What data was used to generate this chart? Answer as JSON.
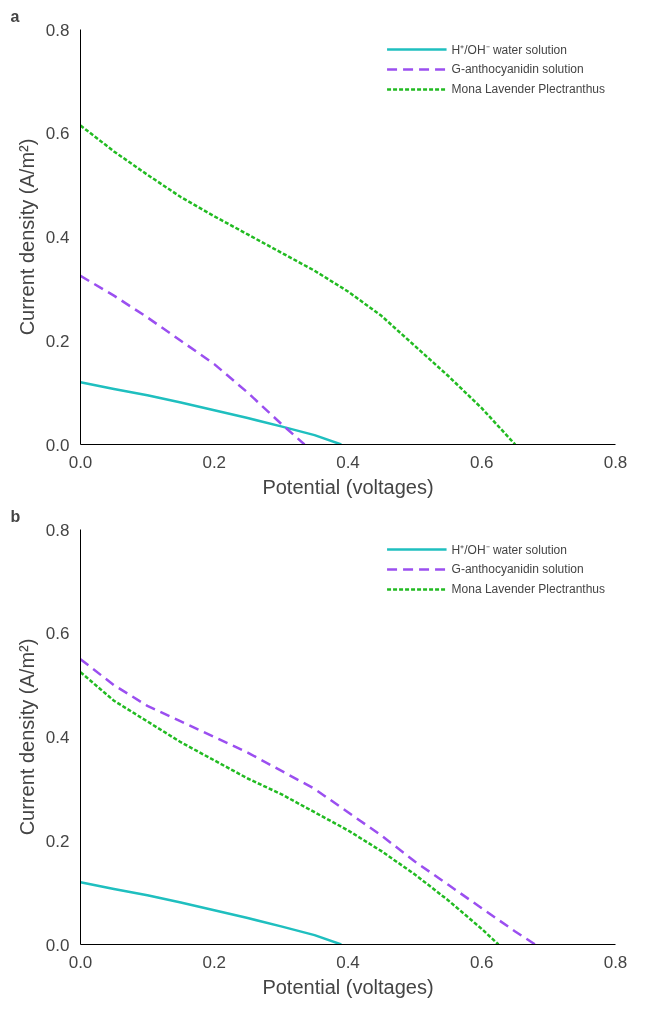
{
  "chart_data": [
    {
      "type": "line",
      "title": "a",
      "xlabel": "Potential (voltages)",
      "ylabel": "Current density (A/m²)",
      "xlim": [
        0,
        0.8
      ],
      "ylim": [
        0,
        0.8
      ],
      "xticks": [
        {
          "value": 0,
          "label": "0.0"
        },
        0.2,
        0.4,
        0.6,
        0.8
      ],
      "yticks": [
        {
          "value": 0,
          "label": "0.0"
        },
        0.2,
        0.4,
        0.6,
        0.8
      ],
      "grid": false,
      "legend": "top right",
      "marker": "none",
      "series": [
        {
          "name": "H⁺/OH⁻ water solution",
          "color": "#1fbfbf",
          "line_style": "solid",
          "x": [
            0,
            0.05,
            0.1,
            0.15,
            0.2,
            0.25,
            0.3,
            0.35,
            0.39
          ],
          "values": [
            0.12,
            0.107,
            0.095,
            0.081,
            0.066,
            0.051,
            0.035,
            0.018,
            0
          ]
        },
        {
          "name": "G-anthocyanidin solution",
          "color": "#9b4ff0",
          "line_style": "dashed",
          "x": [
            0,
            0.05,
            0.1,
            0.15,
            0.2,
            0.25,
            0.3,
            0.335
          ],
          "values": [
            0.325,
            0.287,
            0.245,
            0.2,
            0.155,
            0.1,
            0.04,
            0
          ]
        },
        {
          "name": "Mona Lavender Plectranthus",
          "color": "#22bb22",
          "line_style": "dotted",
          "x": [
            0,
            0.05,
            0.1,
            0.15,
            0.2,
            0.25,
            0.3,
            0.35,
            0.4,
            0.45,
            0.5,
            0.55,
            0.6,
            0.65
          ],
          "values": [
            0.615,
            0.565,
            0.52,
            0.477,
            0.44,
            0.405,
            0.37,
            0.335,
            0.295,
            0.248,
            0.19,
            0.132,
            0.07,
            0
          ]
        }
      ]
    },
    {
      "type": "line",
      "title": "b",
      "xlabel": "Potential (voltages)",
      "ylabel": "Current density (A/m²)",
      "xlim": [
        0,
        0.8
      ],
      "ylim": [
        0,
        0.8
      ],
      "xticks": [
        {
          "value": 0,
          "label": "0.0"
        },
        0.2,
        0.4,
        0.6,
        0.8
      ],
      "yticks": [
        {
          "value": 0,
          "label": "0.0"
        },
        0.2,
        0.4,
        0.6,
        0.8
      ],
      "grid": false,
      "legend": "top right",
      "marker": "none",
      "series": [
        {
          "name": "H⁺/OH⁻ water solution",
          "color": "#1fbfbf",
          "line_style": "solid",
          "x": [
            0,
            0.05,
            0.1,
            0.15,
            0.2,
            0.25,
            0.3,
            0.35,
            0.39
          ],
          "values": [
            0.12,
            0.107,
            0.095,
            0.081,
            0.066,
            0.051,
            0.035,
            0.018,
            0
          ]
        },
        {
          "name": "G-anthocyanidin solution",
          "color": "#9b4ff0",
          "line_style": "dashed",
          "x": [
            0,
            0.05,
            0.1,
            0.15,
            0.2,
            0.25,
            0.3,
            0.35,
            0.4,
            0.45,
            0.5,
            0.55,
            0.6,
            0.65,
            0.68
          ],
          "values": [
            0.55,
            0.5,
            0.46,
            0.43,
            0.4,
            0.37,
            0.335,
            0.3,
            0.255,
            0.21,
            0.16,
            0.115,
            0.07,
            0.025,
            0
          ]
        },
        {
          "name": "Mona Lavender Plectranthus",
          "color": "#22bb22",
          "line_style": "dotted",
          "x": [
            0,
            0.05,
            0.1,
            0.15,
            0.2,
            0.25,
            0.3,
            0.35,
            0.4,
            0.45,
            0.5,
            0.55,
            0.6,
            0.625
          ],
          "values": [
            0.525,
            0.47,
            0.43,
            0.39,
            0.355,
            0.32,
            0.29,
            0.255,
            0.22,
            0.18,
            0.135,
            0.085,
            0.03,
            0
          ]
        }
      ]
    }
  ]
}
